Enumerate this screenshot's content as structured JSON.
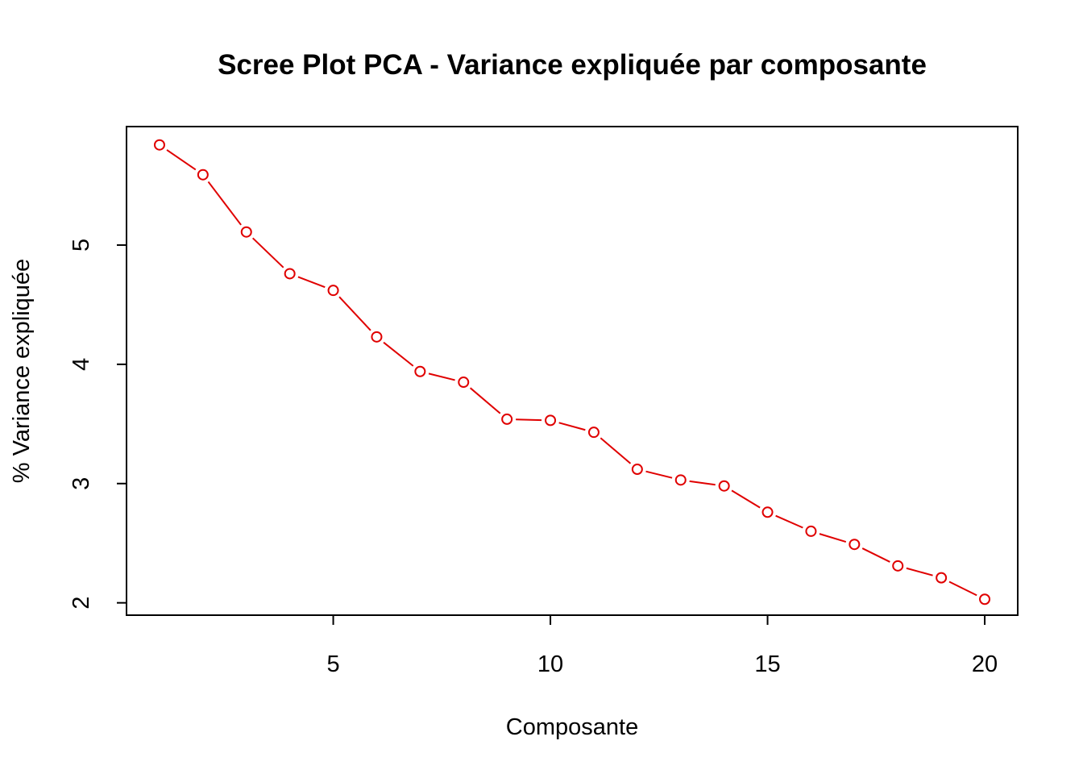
{
  "chart_data": {
    "type": "line",
    "title": "Scree Plot PCA - Variance expliquée par composante",
    "xlabel": "Composante",
    "ylabel": "% Variance expliquée",
    "x": [
      1,
      2,
      3,
      4,
      5,
      6,
      7,
      8,
      9,
      10,
      11,
      12,
      13,
      14,
      15,
      16,
      17,
      18,
      19,
      20
    ],
    "values": [
      5.84,
      5.59,
      5.11,
      4.76,
      4.62,
      4.23,
      3.94,
      3.85,
      3.54,
      3.53,
      3.43,
      3.12,
      3.03,
      2.98,
      2.76,
      2.6,
      2.49,
      2.31,
      2.21,
      2.03
    ],
    "xlim": [
      0.24,
      20.76
    ],
    "ylim": [
      1.8964,
      5.9936
    ],
    "xticks": [
      5,
      10,
      15,
      20
    ],
    "xtick_labels": [
      "5",
      "10",
      "15",
      "20"
    ],
    "yticks": [
      2,
      3,
      4,
      5
    ],
    "ytick_labels": [
      "2",
      "3",
      "4",
      "5"
    ],
    "marker": "open-circle",
    "line_style": "overplotted",
    "grid": false,
    "legend": "none",
    "series_color": "#E00000",
    "axis_color": "#000000"
  }
}
